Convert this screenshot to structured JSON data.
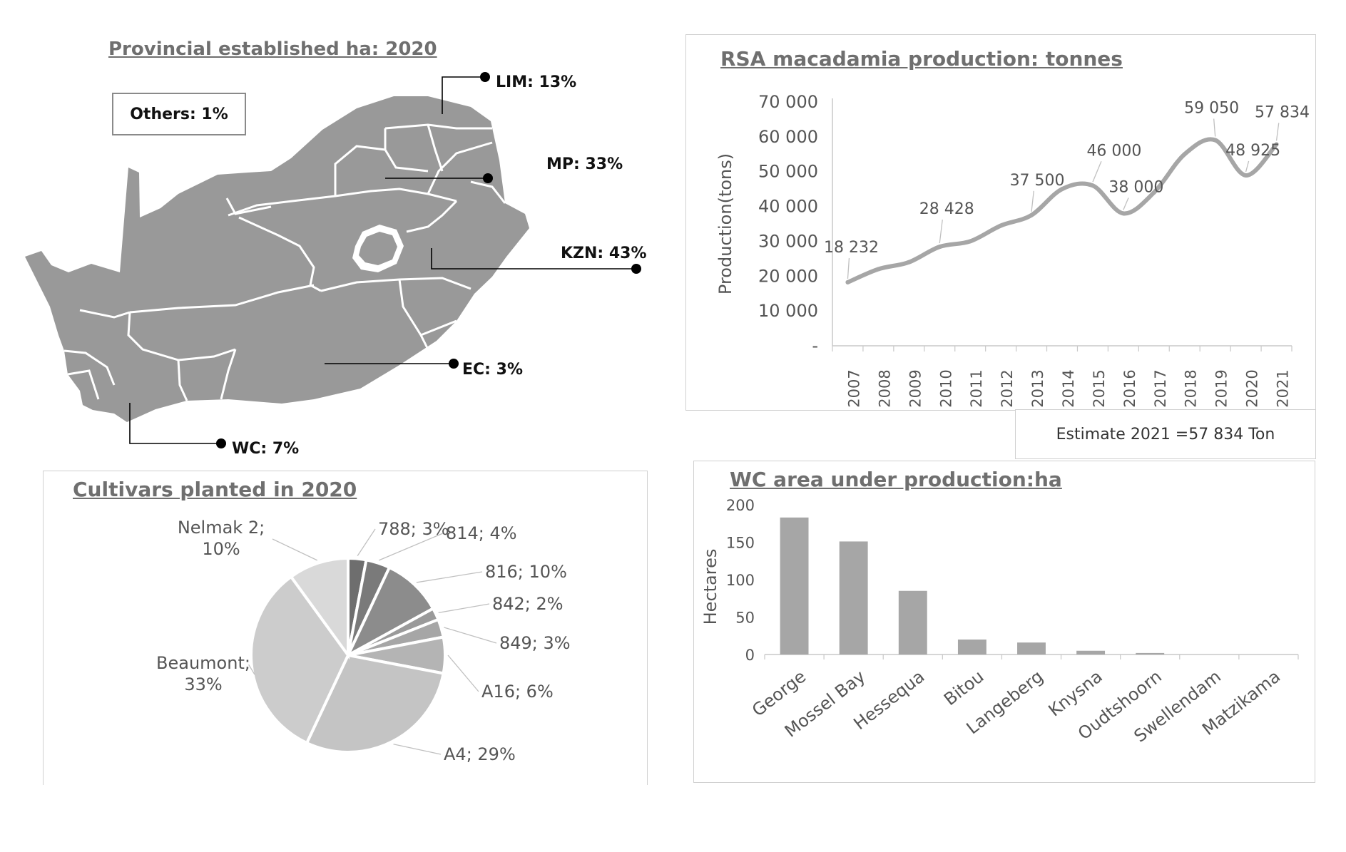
{
  "map_panel": {
    "title": "Provincial established ha: 2020",
    "others_label": "Others: 1%",
    "provinces": [
      {
        "key": "lim",
        "label": "LIM: 13%"
      },
      {
        "key": "mp",
        "label": "MP: 33%"
      },
      {
        "key": "kzn",
        "label": "KZN: 43%"
      },
      {
        "key": "ec",
        "label": "EC: 3%"
      },
      {
        "key": "wc",
        "label": "WC: 7%"
      }
    ],
    "colors": {
      "land": "#999999",
      "border": "#ffffff",
      "leader": "#000000"
    }
  },
  "chart_data": [
    {
      "id": "production",
      "type": "line",
      "title": "RSA macadamia production: tonnes",
      "xlabel": "",
      "ylabel": "Production(tons)",
      "x": [
        "2007",
        "2008",
        "2009",
        "2010",
        "2011",
        "2012",
        "2013",
        "2014",
        "2015",
        "2016",
        "2017",
        "2018",
        "2019",
        "2020",
        "2021"
      ],
      "values": [
        18232,
        22000,
        24000,
        28428,
        30000,
        34500,
        37500,
        45000,
        46000,
        38000,
        44000,
        55000,
        59050,
        48925,
        57834
      ],
      "ylim": [
        0,
        70000
      ],
      "yticks": [
        "-",
        "10 000",
        "20 000",
        "30 000",
        "40 000",
        "50 000",
        "60 000",
        "70 000"
      ],
      "data_labels": [
        {
          "index": 0,
          "text": "18 232"
        },
        {
          "index": 3,
          "text": "28 428"
        },
        {
          "index": 6,
          "text": "37 500"
        },
        {
          "index": 8,
          "text": "46 000"
        },
        {
          "index": 9,
          "text": "38 000"
        },
        {
          "index": 12,
          "text": "59 050"
        },
        {
          "index": 13,
          "text": "48 925"
        },
        {
          "index": 14,
          "text": "57 834"
        }
      ],
      "note": "Estimate 2021 =57 834 Ton",
      "color": "#a6a6a6"
    },
    {
      "id": "cultivars",
      "type": "pie",
      "title": "Cultivars planted in 2020",
      "slices": [
        {
          "label": "788; 3%",
          "value": 3,
          "color": "#6e6e6e"
        },
        {
          "label": "814; 4%",
          "value": 4,
          "color": "#7a7a7a"
        },
        {
          "label": "816; 10%",
          "value": 10,
          "color": "#8c8c8c"
        },
        {
          "label": "842; 2%",
          "value": 2,
          "color": "#9a9a9a"
        },
        {
          "label": "849; 3%",
          "value": 3,
          "color": "#a6a6a6"
        },
        {
          "label": "A16; 6%",
          "value": 6,
          "color": "#b4b4b4"
        },
        {
          "label": "A4; 29%",
          "value": 29,
          "color": "#c4c4c4"
        },
        {
          "label": "Beaumont; 33%",
          "value": 33,
          "color": "#cccccc"
        },
        {
          "label": "Nelmak 2; 10%",
          "value": 10,
          "color": "#d9d9d9"
        }
      ]
    },
    {
      "id": "wc_area",
      "type": "bar",
      "title": "WC area under production:ha",
      "xlabel": "",
      "ylabel": "Hectares",
      "categories": [
        "George",
        "Mossel Bay",
        "Hessequa",
        "Bitou",
        "Langeberg",
        "Knysna",
        "Oudtshoorn",
        "Swellendam",
        "Matzikama"
      ],
      "values": [
        183,
        151,
        85,
        20,
        16,
        5,
        2,
        0,
        0
      ],
      "ylim": [
        0,
        200
      ],
      "yticks": [
        "0",
        "50",
        "100",
        "150",
        "200"
      ],
      "color": "#a6a6a6"
    }
  ]
}
